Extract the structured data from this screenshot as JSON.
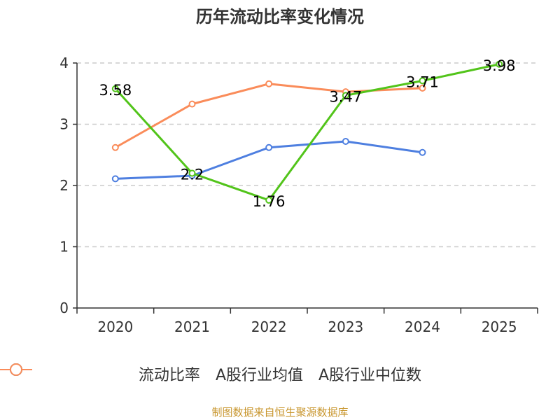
{
  "chart_data": {
    "type": "line",
    "title": "历年流动比率变化情况",
    "categories": [
      "2020",
      "2021",
      "2022",
      "2023",
      "2024",
      "2025"
    ],
    "ylim": [
      0,
      4
    ],
    "yticks": [
      "0",
      "1",
      "2",
      "3",
      "4"
    ],
    "grid": true,
    "legend_position": "bottom",
    "series": [
      {
        "name": "流动比率",
        "color": "#52c41a",
        "values": [
          3.58,
          2.2,
          1.76,
          3.47,
          3.71,
          3.98
        ],
        "labels": [
          "3.58",
          "2.2",
          "1.76",
          "3.47",
          "3.71",
          "3.98"
        ]
      },
      {
        "name": "A股行业均值",
        "color": "#4e7fe0",
        "values": [
          2.11,
          2.16,
          2.62,
          2.72,
          2.54,
          null
        ]
      },
      {
        "name": "A股行业中位数",
        "color": "#fa8c5a",
        "values": [
          2.62,
          3.33,
          3.66,
          3.53,
          3.59,
          null
        ]
      }
    ]
  },
  "footer": {
    "source": "制图数据来自恒生聚源数据库"
  }
}
